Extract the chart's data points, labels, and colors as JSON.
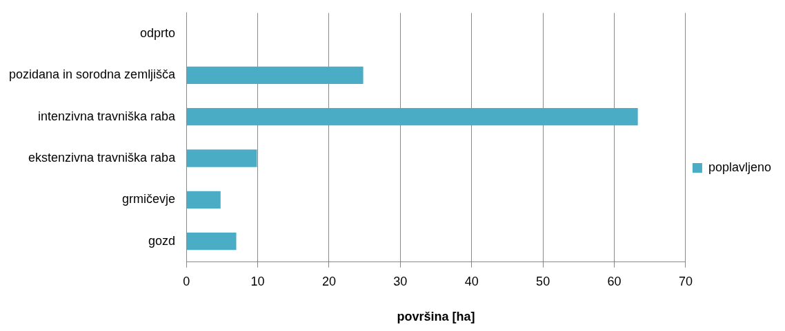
{
  "chart_data": {
    "type": "bar",
    "orientation": "horizontal",
    "xlabel": "površina [ha]",
    "categories": [
      "odprto",
      "pozidana in sorodna zemljišča",
      "intenzivna travniška raba",
      "ekstenzivna travniška raba",
      "grmičevje",
      "gozd"
    ],
    "series": [
      {
        "name": "poplavljeno",
        "color": "#4bacc6",
        "values": [
          0,
          24.8,
          63.3,
          9.9,
          4.8,
          7.0
        ]
      }
    ],
    "xlim": [
      0,
      70
    ],
    "xticks": [
      0,
      10,
      20,
      30,
      40,
      50,
      60,
      70
    ],
    "grid": "x",
    "legend": "right"
  }
}
